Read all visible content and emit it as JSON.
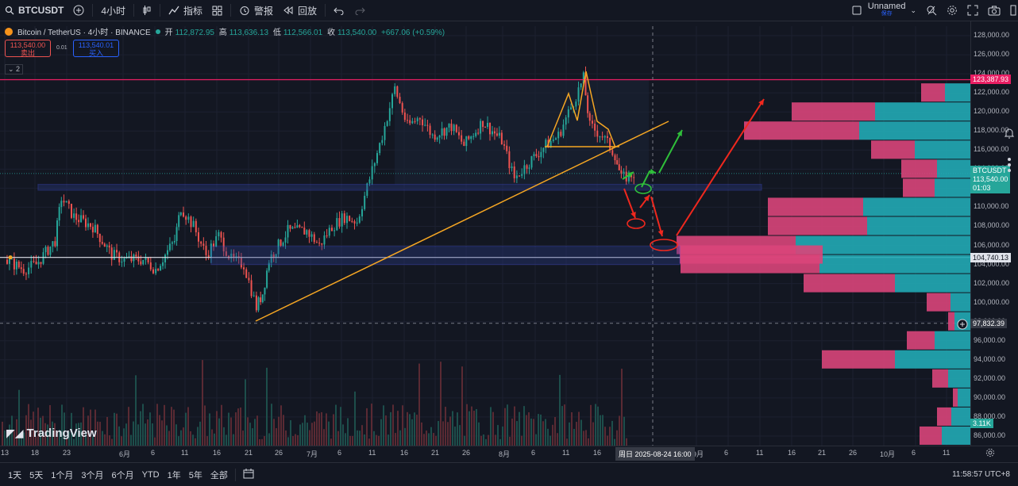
{
  "toolbar": {
    "symbol": "BTCUSDT",
    "interval": "4小时",
    "indicators": "指标",
    "alert": "警报",
    "replay": "回放",
    "layout_name": "Unnamed",
    "layout_sub": "保存"
  },
  "legend": {
    "title": "Bitcoin / TetherUS · 4小时 · BINANCE",
    "open_label": "开",
    "open": "112,872.95",
    "high_label": "高",
    "high": "113,636.13",
    "low_label": "低",
    "low": "112,566.01",
    "close_label": "收",
    "close": "113,540.00",
    "change": "+667.06 (+0.59%)",
    "sell_price": "113,540.00",
    "sell_label": "卖出",
    "spread": "0.01",
    "buy_price": "113,540.01",
    "buy_label": "买入",
    "indicator_count": "2"
  },
  "watermark": "TradingView",
  "price_tags": {
    "top_line": "123,387.93",
    "symbol": "BTCUSDT",
    "current": "113,540.00",
    "countdown": "01:03",
    "white_line": "104,740.13",
    "crosshair": "97,832.39",
    "volume": "3.11K"
  },
  "crosshair_time": "周日 2025-08-24   16:00",
  "bottom": {
    "ranges": [
      "1天",
      "5天",
      "1个月",
      "3个月",
      "6个月",
      "YTD",
      "1年",
      "5年",
      "全部"
    ],
    "clock": "11:58:57 UTC+8"
  },
  "colors": {
    "up": "#26a69a",
    "down": "#ef5350",
    "accent": "#2962ff",
    "volume_sell": "#d9457a",
    "volume_buy": "#22aab5",
    "trendline": "#f5a623",
    "zone": "#3f4fd8",
    "top_line": "#e91e63"
  },
  "chart_data": {
    "type": "candlestick",
    "title": "Bitcoin / TetherUS · 4小时 · BINANCE",
    "x_ticks": [
      "13",
      "18",
      "23",
      "6月",
      "6",
      "11",
      "16",
      "21",
      "26",
      "7月",
      "6",
      "11",
      "16",
      "21",
      "26",
      "8月",
      "6",
      "11",
      "16",
      "9月",
      "6",
      "11",
      "16",
      "21",
      "26",
      "10月",
      "6",
      "11"
    ],
    "y_ticks": [
      "128,000.00",
      "126,000.00",
      "124,000.00",
      "122,000.00",
      "120,000.00",
      "118,000.00",
      "116,000.00",
      "114,000.00",
      "112,000.00",
      "110,000.00",
      "108,000.00",
      "106,000.00",
      "104,000.00",
      "102,000.00",
      "100,000.00",
      "98,000.00",
      "96,000.00",
      "94,000.00",
      "92,000.00",
      "90,000.00",
      "88,000.00",
      "86,000.00"
    ],
    "ylim": [
      85000,
      129000
    ],
    "price_path": [
      [
        "05-13",
        104500
      ],
      [
        "05-16",
        103500
      ],
      [
        "05-18",
        104000
      ],
      [
        "05-21",
        106500
      ],
      [
        "05-22",
        111000
      ],
      [
        "05-24",
        109000
      ],
      [
        "05-27",
        108000
      ],
      [
        "05-30",
        105000
      ],
      [
        "06-01",
        104500
      ],
      [
        "06-04",
        104500
      ],
      [
        "06-06",
        103500
      ],
      [
        "06-09",
        106500
      ],
      [
        "06-10",
        110000
      ],
      [
        "06-12",
        108000
      ],
      [
        "06-14",
        105000
      ],
      [
        "06-16",
        107000
      ],
      [
        "06-18",
        104500
      ],
      [
        "06-20",
        104000
      ],
      [
        "06-22",
        99500
      ],
      [
        "06-23",
        101000
      ],
      [
        "06-24",
        104500
      ],
      [
        "06-27",
        107500
      ],
      [
        "06-30",
        107500
      ],
      [
        "07-02",
        106000
      ],
      [
        "07-04",
        108000
      ],
      [
        "07-06",
        109000
      ],
      [
        "07-08",
        108500
      ],
      [
        "07-10",
        113000
      ],
      [
        "07-12",
        117500
      ],
      [
        "07-14",
        122500
      ],
      [
        "07-16",
        118500
      ],
      [
        "07-18",
        119500
      ],
      [
        "07-20",
        117500
      ],
      [
        "07-23",
        118500
      ],
      [
        "07-25",
        116500
      ],
      [
        "07-28",
        119000
      ],
      [
        "07-31",
        117000
      ],
      [
        "08-02",
        113000
      ],
      [
        "08-04",
        114500
      ],
      [
        "08-07",
        116500
      ],
      [
        "08-09",
        117500
      ],
      [
        "08-11",
        120500
      ],
      [
        "08-13",
        123500
      ],
      [
        "08-14",
        118500
      ],
      [
        "08-16",
        117500
      ],
      [
        "08-18",
        115500
      ],
      [
        "08-19",
        113000
      ],
      [
        "08-21",
        113500
      ]
    ],
    "top_line": 123387.93,
    "white_line": 104740.13,
    "crosshair_price": 97832.39,
    "zones": [
      {
        "low": 111800,
        "high": 112400
      },
      {
        "low": 104000,
        "high": 105900
      }
    ],
    "volume_profile": [
      {
        "price": 122000,
        "sell": 30,
        "buy": 32
      },
      {
        "price": 120000,
        "sell": 105,
        "buy": 120
      },
      {
        "price": 118000,
        "sell": 145,
        "buy": 140
      },
      {
        "price": 116000,
        "sell": 55,
        "buy": 70
      },
      {
        "price": 114000,
        "sell": 45,
        "buy": 42
      },
      {
        "price": 112000,
        "sell": 40,
        "buy": 45
      },
      {
        "price": 110000,
        "sell": 120,
        "buy": 135
      },
      {
        "price": 108000,
        "sell": 125,
        "buy": 130
      },
      {
        "price": 106000,
        "sell": 150,
        "buy": 220
      },
      {
        "price": 104000,
        "sell": 175,
        "buy": 190
      },
      {
        "price": 102000,
        "sell": 115,
        "buy": 95
      },
      {
        "price": 100000,
        "sell": 30,
        "buy": 25
      },
      {
        "price": 98000,
        "sell": 8,
        "buy": 20
      },
      {
        "price": 96000,
        "sell": 35,
        "buy": 45
      },
      {
        "price": 94000,
        "sell": 92,
        "buy": 95
      },
      {
        "price": 92000,
        "sell": 20,
        "buy": 28
      },
      {
        "price": 90000,
        "sell": 6,
        "buy": 16
      },
      {
        "price": 88000,
        "sell": 18,
        "buy": 24
      },
      {
        "price": 86000,
        "sell": 28,
        "buy": 36
      }
    ]
  }
}
